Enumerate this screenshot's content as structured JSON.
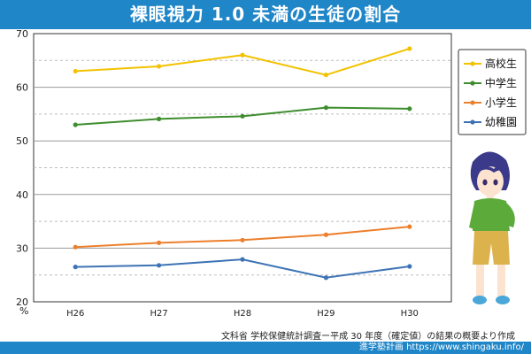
{
  "title": "裸眼視力 1.0 未満の生徒の割合",
  "unit": "%",
  "source": "文科省 学校保健統計調査ー平成 30 年度（確定値）の結果の概要より作成",
  "footer": "進学塾計画 https://www.shingaku.info/",
  "chart_data": {
    "type": "line",
    "categories": [
      "H26",
      "H27",
      "H28",
      "H29",
      "H30"
    ],
    "ylim": [
      20,
      70
    ],
    "yticks": [
      20,
      30,
      40,
      50,
      60,
      70
    ],
    "grid": true,
    "legend_position": "right",
    "series": [
      {
        "name": "高校生",
        "color": "#f2c200",
        "values": [
          63.0,
          63.9,
          66.0,
          62.3,
          67.2
        ]
      },
      {
        "name": "中学生",
        "color": "#3e8e2e",
        "values": [
          53.0,
          54.1,
          54.6,
          56.2,
          56.0
        ]
      },
      {
        "name": "小学生",
        "color": "#ec7f2c",
        "values": [
          30.2,
          31.0,
          31.5,
          32.5,
          34.0
        ]
      },
      {
        "name": "幼稚園",
        "color": "#3d73b5",
        "values": [
          26.5,
          26.8,
          27.9,
          24.5,
          26.6
        ]
      }
    ]
  }
}
